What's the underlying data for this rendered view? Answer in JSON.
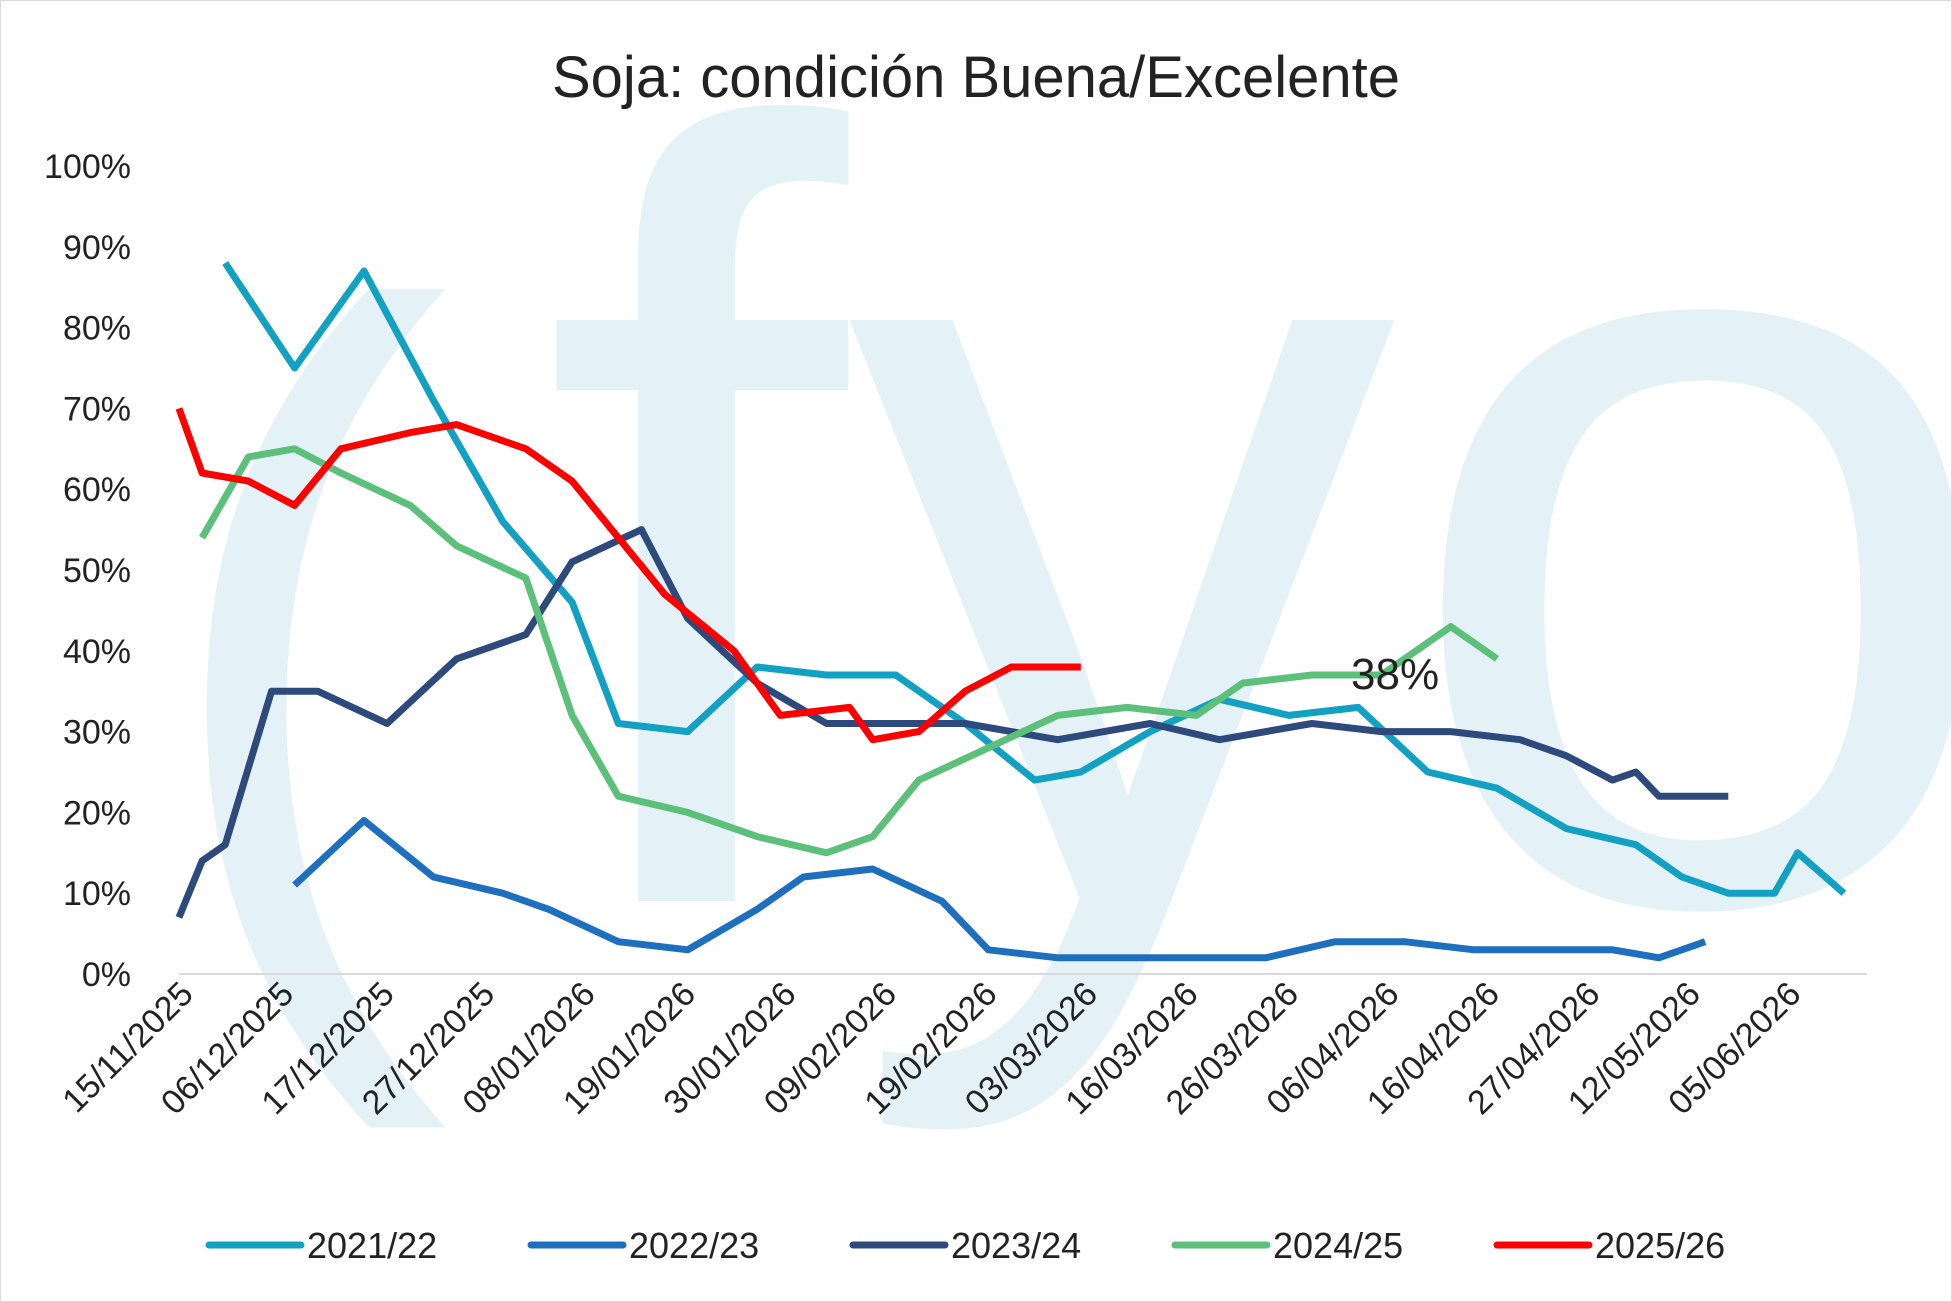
{
  "chart_data": {
    "type": "line",
    "title": "Soja: condición Buena/Excelente",
    "xlabel": "",
    "ylabel": "",
    "ylim": [
      0,
      100
    ],
    "y_ticks": [
      "0%",
      "10%",
      "20%",
      "30%",
      "40%",
      "50%",
      "60%",
      "70%",
      "80%",
      "90%",
      "100%"
    ],
    "x_ticks": [
      "15/11/2025",
      "06/12/2025",
      "17/12/2025",
      "27/12/2025",
      "08/01/2026",
      "19/01/2026",
      "30/01/2026",
      "09/02/2026",
      "19/02/2026",
      "03/03/2026",
      "16/03/2026",
      "26/03/2026",
      "06/04/2026",
      "16/04/2026",
      "27/04/2026",
      "12/05/2026",
      "05/06/2026"
    ],
    "n_points": 47,
    "legend_position": "bottom",
    "annotation": "38%",
    "watermark": "(fyo",
    "series": [
      {
        "name": "2021/22",
        "color": "#12A0C3",
        "start": 2,
        "values": [
          88,
          75,
          87,
          71,
          56,
          46,
          31,
          30,
          38,
          37,
          37,
          31,
          24,
          25,
          30,
          34,
          32,
          33,
          25,
          23,
          18,
          16,
          12,
          10,
          10,
          15,
          10
        ],
        "x_index": [
          2,
          5,
          8,
          11,
          14,
          17,
          19,
          22,
          25,
          28,
          31,
          34,
          37,
          39,
          42,
          45,
          48,
          51,
          54,
          57,
          60,
          63,
          65,
          67,
          69,
          70,
          72
        ]
      },
      {
        "name": "2022/23",
        "color": "#1F6FBF",
        "values": [
          11,
          19,
          12,
          10,
          8,
          4,
          3,
          8,
          12,
          13,
          9,
          3,
          2,
          2,
          2,
          2,
          4,
          4,
          3,
          3,
          3,
          2,
          4
        ],
        "x_index": [
          5,
          8,
          11,
          14,
          16,
          19,
          22,
          25,
          27,
          30,
          33,
          35,
          38,
          41,
          44,
          47,
          50,
          53,
          56,
          59,
          62,
          64,
          66
        ]
      },
      {
        "name": "2023/24",
        "color": "#2E4A7D",
        "values": [
          7,
          14,
          16,
          35,
          35,
          31,
          39,
          42,
          51,
          55,
          44,
          36,
          31,
          31,
          31,
          29,
          31,
          29,
          31,
          30,
          30,
          29,
          27,
          24,
          25,
          22,
          22
        ],
        "x_index": [
          0,
          1,
          2,
          4,
          6,
          9,
          12,
          15,
          17,
          20,
          22,
          25,
          28,
          31,
          34,
          38,
          42,
          45,
          49,
          52,
          55,
          58,
          60,
          62,
          63,
          64,
          67
        ]
      },
      {
        "name": "2024/25",
        "color": "#5CBF7A",
        "values": [
          54,
          64,
          65,
          62,
          58,
          53,
          49,
          32,
          22,
          20,
          17,
          15,
          17,
          24,
          28,
          32,
          33,
          32,
          36,
          37,
          37,
          43,
          39
        ],
        "x_index": [
          1,
          3,
          5,
          7,
          10,
          12,
          15,
          17,
          19,
          22,
          25,
          28,
          30,
          32,
          35,
          38,
          41,
          44,
          46,
          49,
          52,
          55,
          57
        ]
      },
      {
        "name": "2025/26",
        "color": "#FF0000",
        "values": [
          70,
          62,
          61,
          58,
          65,
          67,
          68,
          65,
          61,
          54,
          47,
          40,
          32,
          33,
          29,
          30,
          35,
          38,
          38
        ],
        "x_index": [
          0,
          1,
          3,
          5,
          7,
          10,
          12,
          15,
          17,
          19,
          21,
          24,
          26,
          29,
          30,
          32,
          34,
          36,
          39
        ]
      }
    ]
  }
}
